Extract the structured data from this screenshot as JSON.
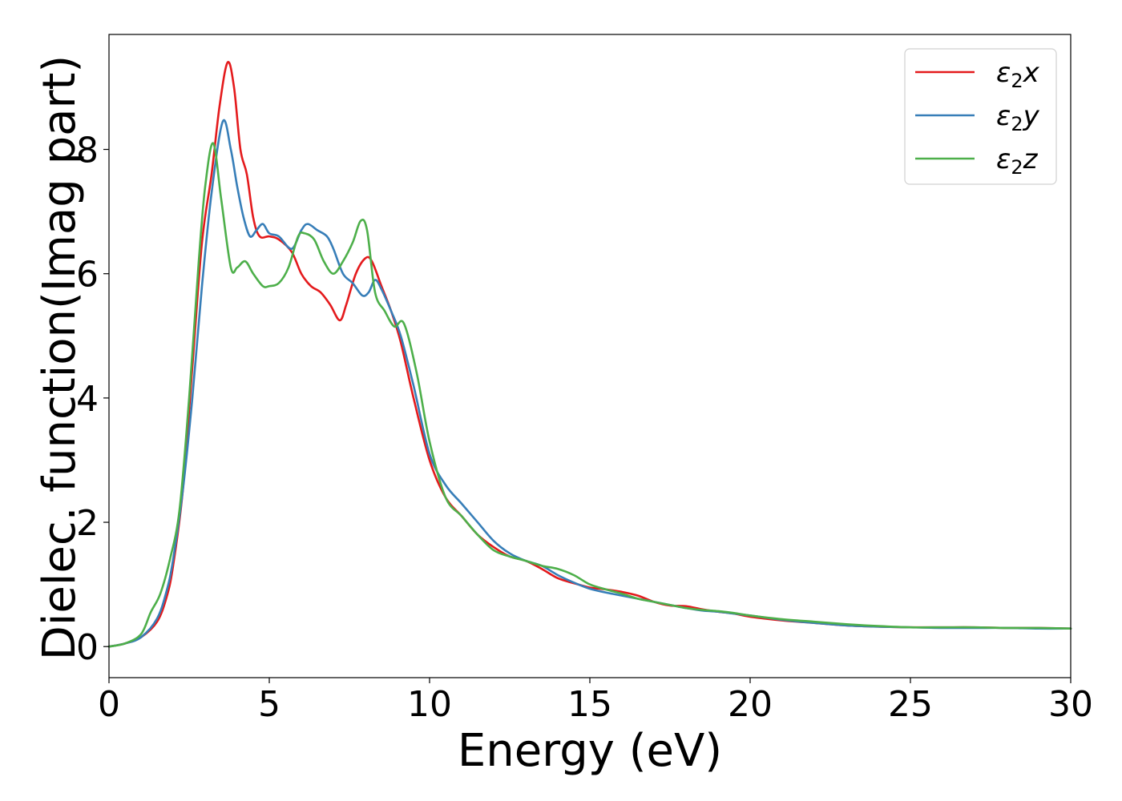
{
  "chart_data": {
    "type": "line",
    "xlabel": "Energy (eV)",
    "ylabel": "Dielec. function(Imag part)",
    "xlim": [
      0,
      30
    ],
    "ylim": [
      -0.5,
      9.85
    ],
    "xticks": [
      0,
      5,
      10,
      15,
      20,
      25,
      30
    ],
    "xtick_labels": [
      "0",
      "5",
      "10",
      "15",
      "20",
      "25",
      "30"
    ],
    "yticks": [
      0,
      2,
      4,
      6,
      8
    ],
    "ytick_labels": [
      "0",
      "2",
      "4",
      "6",
      "8"
    ],
    "grid": false,
    "legend_position": "top-right",
    "series": [
      {
        "name": "ε₂x",
        "name_main": "ε",
        "name_sub": "2",
        "name_suffix": "x",
        "color": "#e41a1c",
        "x": [
          0,
          0.5,
          1.0,
          1.5,
          1.8,
          2.0,
          2.3,
          2.6,
          2.9,
          3.2,
          3.45,
          3.7,
          3.9,
          4.1,
          4.3,
          4.5,
          4.7,
          5.0,
          5.3,
          5.7,
          6.0,
          6.3,
          6.6,
          6.9,
          7.2,
          7.4,
          7.7,
          8.0,
          8.2,
          8.5,
          8.8,
          9.1,
          9.5,
          10.0,
          10.5,
          11.0,
          11.5,
          12.0,
          12.5,
          13.0,
          13.5,
          14.0,
          14.5,
          15.0,
          15.5,
          16.0,
          16.5,
          17.0,
          17.5,
          18.0,
          18.5,
          19.0,
          19.5,
          20.0,
          21.0,
          22.0,
          23.0,
          24.0,
          25.0,
          26.0,
          27.0,
          28.0,
          29.0,
          30.0
        ],
        "y": [
          0,
          0.05,
          0.15,
          0.4,
          0.8,
          1.3,
          2.5,
          4.5,
          6.5,
          7.6,
          8.7,
          9.4,
          9.0,
          8.0,
          7.6,
          6.9,
          6.6,
          6.6,
          6.55,
          6.35,
          6.0,
          5.8,
          5.7,
          5.5,
          5.25,
          5.5,
          6.0,
          6.25,
          6.2,
          5.8,
          5.4,
          4.9,
          4.0,
          3.0,
          2.4,
          2.1,
          1.8,
          1.6,
          1.45,
          1.38,
          1.25,
          1.1,
          1.02,
          0.95,
          0.92,
          0.88,
          0.82,
          0.72,
          0.66,
          0.65,
          0.6,
          0.56,
          0.53,
          0.48,
          0.42,
          0.38,
          0.34,
          0.32,
          0.31,
          0.31,
          0.31,
          0.3,
          0.3,
          0.29
        ]
      },
      {
        "name": "ε₂y",
        "name_main": "ε",
        "name_sub": "2",
        "name_suffix": "y",
        "color": "#377eb8",
        "x": [
          0,
          0.5,
          1.0,
          1.5,
          1.8,
          2.0,
          2.3,
          2.6,
          2.9,
          3.2,
          3.55,
          3.8,
          4.0,
          4.2,
          4.4,
          4.6,
          4.8,
          5.0,
          5.3,
          5.7,
          6.0,
          6.2,
          6.5,
          6.8,
          7.0,
          7.3,
          7.6,
          7.9,
          8.1,
          8.3,
          8.5,
          8.8,
          9.1,
          9.5,
          10.0,
          10.5,
          11.0,
          11.5,
          12.0,
          12.5,
          13.0,
          13.5,
          14.0,
          14.5,
          15.0,
          15.5,
          16.0,
          16.5,
          17.0,
          17.5,
          18.0,
          18.5,
          19.0,
          19.5,
          20.0,
          21.0,
          22.0,
          23.0,
          24.0,
          25.0,
          26.0,
          27.0,
          28.0,
          29.0,
          30.0
        ],
        "y": [
          0,
          0.05,
          0.15,
          0.45,
          0.9,
          1.4,
          2.5,
          4.0,
          5.8,
          7.3,
          8.45,
          8.0,
          7.4,
          6.9,
          6.6,
          6.7,
          6.8,
          6.65,
          6.6,
          6.4,
          6.7,
          6.8,
          6.7,
          6.6,
          6.4,
          6.0,
          5.85,
          5.65,
          5.7,
          5.9,
          5.75,
          5.4,
          5.0,
          4.2,
          3.1,
          2.6,
          2.3,
          2.0,
          1.7,
          1.5,
          1.38,
          1.3,
          1.15,
          1.03,
          0.93,
          0.87,
          0.82,
          0.77,
          0.72,
          0.67,
          0.62,
          0.58,
          0.56,
          0.53,
          0.5,
          0.43,
          0.38,
          0.34,
          0.32,
          0.31,
          0.3,
          0.3,
          0.3,
          0.29,
          0.29
        ]
      },
      {
        "name": "ε₂z",
        "name_main": "ε",
        "name_sub": "2",
        "name_suffix": "z",
        "color": "#4daf4a",
        "x": [
          0,
          0.5,
          1.0,
          1.3,
          1.6,
          1.9,
          2.2,
          2.5,
          2.8,
          3.0,
          3.25,
          3.5,
          3.8,
          4.0,
          4.25,
          4.5,
          4.8,
          5.0,
          5.3,
          5.6,
          5.9,
          6.1,
          6.4,
          6.7,
          7.0,
          7.3,
          7.6,
          7.85,
          8.05,
          8.3,
          8.6,
          8.9,
          9.2,
          9.6,
          10.0,
          10.5,
          11.0,
          11.5,
          12.0,
          12.5,
          13.0,
          13.5,
          14.0,
          14.5,
          15.0,
          15.5,
          16.0,
          16.5,
          17.0,
          17.5,
          18.0,
          18.5,
          19.0,
          19.5,
          20.0,
          21.0,
          22.0,
          23.0,
          24.0,
          25.0,
          26.0,
          27.0,
          28.0,
          29.0,
          30.0
        ],
        "y": [
          0,
          0.05,
          0.2,
          0.55,
          0.85,
          1.4,
          2.2,
          4.0,
          6.2,
          7.4,
          8.1,
          7.2,
          6.1,
          6.1,
          6.2,
          6.0,
          5.8,
          5.8,
          5.85,
          6.1,
          6.6,
          6.65,
          6.55,
          6.2,
          6.0,
          6.2,
          6.5,
          6.85,
          6.7,
          5.7,
          5.4,
          5.15,
          5.2,
          4.4,
          3.3,
          2.4,
          2.1,
          1.8,
          1.55,
          1.45,
          1.38,
          1.3,
          1.25,
          1.15,
          1.0,
          0.92,
          0.85,
          0.77,
          0.72,
          0.67,
          0.62,
          0.59,
          0.57,
          0.54,
          0.5,
          0.44,
          0.4,
          0.36,
          0.33,
          0.31,
          0.31,
          0.31,
          0.3,
          0.3,
          0.29
        ]
      }
    ]
  }
}
